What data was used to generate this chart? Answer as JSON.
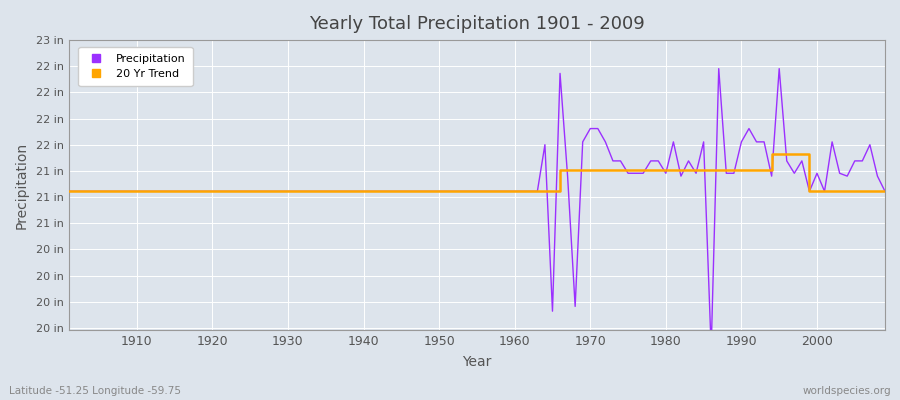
{
  "title": "Yearly Total Precipitation 1901 - 2009",
  "xlabel": "Year",
  "ylabel": "Precipitation",
  "background_color": "#dde4ec",
  "plot_bg_color": "#dde4ec",
  "precipitation_color": "#9B30FF",
  "trend_color": "#FFA500",
  "grid_color": "#ffffff",
  "subtitle": "Latitude -51.25 Longitude -59.75",
  "watermark": "worldspecies.org",
  "years": [
    1901,
    1902,
    1903,
    1904,
    1905,
    1906,
    1907,
    1908,
    1909,
    1910,
    1911,
    1912,
    1913,
    1914,
    1915,
    1916,
    1917,
    1918,
    1919,
    1920,
    1921,
    1922,
    1923,
    1924,
    1925,
    1926,
    1927,
    1928,
    1929,
    1930,
    1931,
    1932,
    1933,
    1934,
    1935,
    1936,
    1937,
    1938,
    1939,
    1940,
    1941,
    1942,
    1943,
    1944,
    1945,
    1946,
    1947,
    1948,
    1949,
    1950,
    1951,
    1952,
    1953,
    1954,
    1955,
    1956,
    1957,
    1958,
    1959,
    1960,
    1961,
    1962,
    1963,
    1964,
    1965,
    1966,
    1967,
    1968,
    1969,
    1970,
    1971,
    1972,
    1973,
    1974,
    1975,
    1976,
    1977,
    1978,
    1979,
    1980,
    1981,
    1982,
    1983,
    1984,
    1985,
    1986,
    1987,
    1988,
    1989,
    1990,
    1991,
    1992,
    1993,
    1994,
    1995,
    1996,
    1997,
    1998,
    1999,
    2000,
    2001,
    2002,
    2003,
    2004,
    2005,
    2006,
    2007,
    2008,
    2009
  ],
  "precipitation": [
    21.06,
    21.06,
    21.06,
    21.06,
    21.06,
    21.06,
    21.06,
    21.06,
    21.06,
    21.06,
    21.06,
    21.06,
    21.06,
    21.06,
    21.06,
    21.06,
    21.06,
    21.06,
    21.06,
    21.06,
    21.06,
    21.06,
    21.06,
    21.06,
    21.06,
    21.06,
    21.06,
    21.06,
    21.06,
    21.06,
    21.06,
    21.06,
    21.06,
    21.06,
    21.06,
    21.06,
    21.06,
    21.06,
    21.06,
    21.06,
    21.06,
    21.06,
    21.06,
    21.06,
    21.06,
    21.06,
    21.06,
    21.06,
    21.06,
    21.06,
    21.06,
    21.06,
    21.06,
    21.06,
    21.06,
    21.06,
    21.06,
    21.06,
    21.06,
    21.06,
    21.06,
    21.06,
    21.06,
    21.55,
    19.8,
    22.3,
    21.22,
    19.85,
    21.58,
    21.72,
    21.72,
    21.58,
    21.38,
    21.38,
    21.25,
    21.25,
    21.25,
    21.38,
    21.38,
    21.25,
    21.58,
    21.22,
    21.38,
    21.25,
    21.58,
    19.4,
    22.35,
    21.25,
    21.25,
    21.58,
    21.72,
    21.58,
    21.58,
    21.22,
    22.35,
    21.38,
    21.25,
    21.38,
    21.06,
    21.25,
    21.06,
    21.58,
    21.25,
    21.22,
    21.38,
    21.38,
    21.55,
    21.22,
    21.06
  ],
  "trend_segments": [
    {
      "x": [
        1901,
        1959
      ],
      "y": [
        21.06,
        21.06
      ]
    },
    {
      "x": [
        1959,
        1966
      ],
      "y": [
        21.06,
        21.06
      ]
    },
    {
      "x": [
        1966,
        1986
      ],
      "y": [
        21.28,
        21.28
      ]
    },
    {
      "x": [
        1986,
        1994
      ],
      "y": [
        21.28,
        21.28
      ]
    },
    {
      "x": [
        1994,
        1999
      ],
      "y": [
        21.45,
        21.45
      ]
    },
    {
      "x": [
        1999,
        2009
      ],
      "y": [
        21.06,
        21.06
      ]
    }
  ],
  "ylim_min": 19.6,
  "ylim_max": 22.65,
  "xlim_min": 1901,
  "xlim_max": 2009,
  "ytick_positions": [
    19.625,
    19.9,
    20.175,
    20.45,
    20.725,
    21.0,
    21.275,
    21.55,
    21.825,
    22.1,
    22.375,
    22.65
  ],
  "xticks": [
    1910,
    1920,
    1930,
    1940,
    1950,
    1960,
    1970,
    1980,
    1990,
    2000
  ]
}
